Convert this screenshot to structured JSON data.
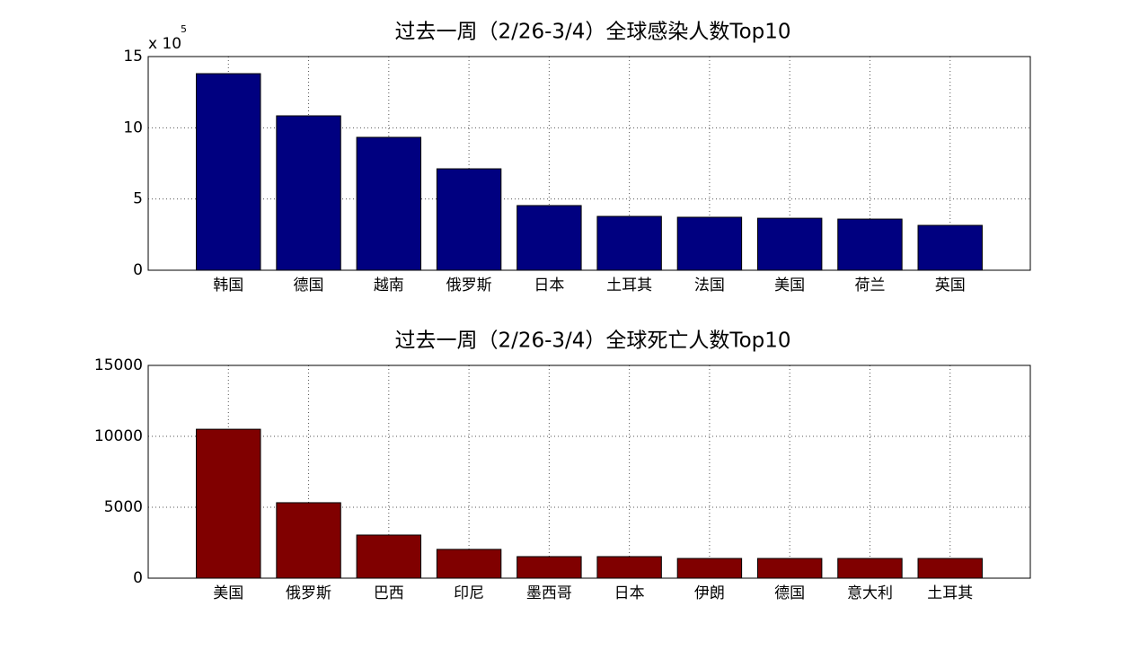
{
  "chart_data": [
    {
      "type": "bar",
      "title": "过去一周（2/26-3/4）全球感染人数Top10",
      "y_multiplier": "x 10",
      "y_multiplier_exponent": "5",
      "categories": [
        "韩国",
        "德国",
        "越南",
        "俄罗斯",
        "日本",
        "土耳其",
        "法国",
        "美国",
        "荷兰",
        "英国"
      ],
      "values": [
        13.8,
        10.84,
        9.33,
        7.12,
        4.54,
        3.78,
        3.72,
        3.65,
        3.59,
        3.15
      ],
      "color": "#000080",
      "ylim": [
        0,
        15
      ],
      "yticks": [
        0,
        5,
        10,
        15
      ],
      "grid": true
    },
    {
      "type": "bar",
      "title": "过去一周（2/26-3/4）全球死亡人数Top10",
      "categories": [
        "美国",
        "俄罗斯",
        "巴西",
        "印尼",
        "墨西哥",
        "日本",
        "伊朗",
        "德国",
        "意大利",
        "土耳其"
      ],
      "values": [
        10500,
        5320,
        3040,
        2030,
        1520,
        1520,
        1390,
        1390,
        1390,
        1390
      ],
      "color": "#800000",
      "ylim": [
        0,
        15000
      ],
      "yticks": [
        0,
        5000,
        10000,
        15000
      ],
      "grid": true
    }
  ]
}
